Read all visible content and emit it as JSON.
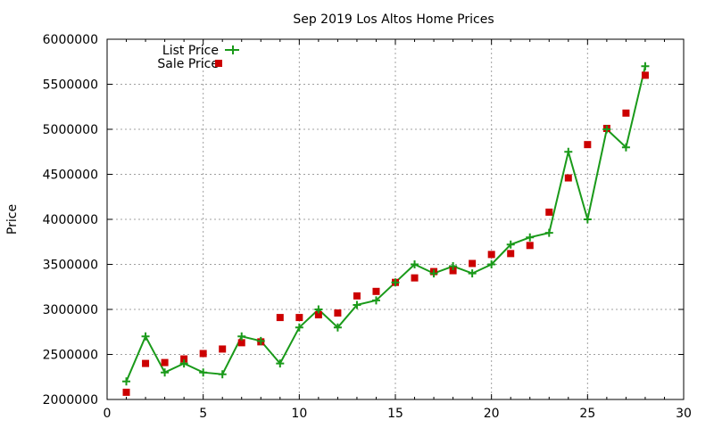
{
  "chart_data": {
    "type": "line",
    "title": "Sep 2019 Los Altos Home Prices",
    "xlabel": "",
    "ylabel": "Price",
    "xlim": [
      0,
      30
    ],
    "ylim": [
      2000000,
      6000000
    ],
    "xticks": [
      0,
      5,
      10,
      15,
      20,
      25,
      30
    ],
    "yticks": [
      2000000,
      2500000,
      3000000,
      3500000,
      4000000,
      4500000,
      5000000,
      5500000,
      6000000
    ],
    "grid": true,
    "legend_position": "top-left",
    "x": [
      1,
      2,
      3,
      4,
      5,
      6,
      7,
      8,
      9,
      10,
      11,
      12,
      13,
      14,
      15,
      16,
      17,
      18,
      19,
      20,
      21,
      22,
      23,
      24,
      25,
      26,
      27,
      28
    ],
    "series": [
      {
        "name": "List Price",
        "style": "line+plus",
        "color": "#1a9a1a",
        "values": [
          2200000,
          2700000,
          2300000,
          2400000,
          2300000,
          2280000,
          2700000,
          2650000,
          2400000,
          2800000,
          3000000,
          2800000,
          3050000,
          3100000,
          3300000,
          3500000,
          3400000,
          3480000,
          3400000,
          3500000,
          3720000,
          3800000,
          3850000,
          4750000,
          4000000,
          5000000,
          4800000,
          5700000
        ]
      },
      {
        "name": "Sale Price",
        "style": "square",
        "color": "#cc0000",
        "values": [
          2080000,
          2400000,
          2410000,
          2450000,
          2510000,
          2560000,
          2630000,
          2640000,
          2910000,
          2910000,
          2940000,
          2960000,
          3150000,
          3200000,
          3300000,
          3350000,
          3420000,
          3430000,
          3510000,
          3610000,
          3620000,
          3710000,
          4080000,
          4460000,
          4830000,
          5010000,
          5180000,
          5600000
        ]
      }
    ]
  }
}
